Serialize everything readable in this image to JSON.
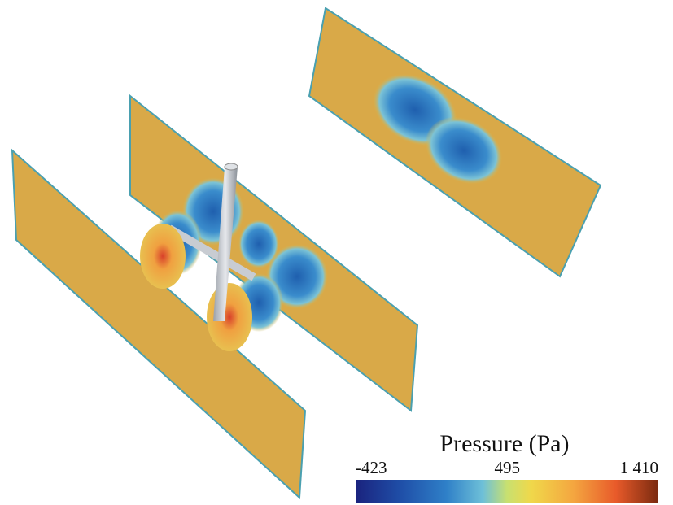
{
  "colorbar": {
    "title": "Pressure (Pa)",
    "ticks": [
      {
        "value": -423,
        "label": "-423"
      },
      {
        "value": 495,
        "label": "495"
      },
      {
        "value": 1410,
        "label": "1 410"
      }
    ]
  }
}
